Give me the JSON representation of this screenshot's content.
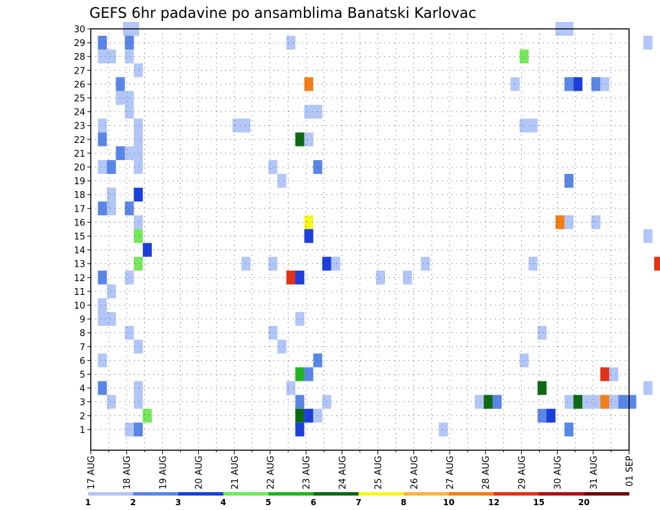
{
  "chart_data": {
    "type": "heatmap",
    "title": "GEFS 6hr padavine po ansamblima Banatski Karlovac",
    "y_ticks": [
      "1",
      "2",
      "3",
      "4",
      "5",
      "6",
      "7",
      "8",
      "9",
      "10",
      "11",
      "12",
      "13",
      "14",
      "15",
      "16",
      "17",
      "18",
      "19",
      "20",
      "21",
      "22",
      "23",
      "24",
      "25",
      "26",
      "27",
      "28",
      "29",
      "30"
    ],
    "x_ticks": [
      "17 AUG",
      "18 AUG",
      "19 AUG",
      "20 AUG",
      "21 AUG",
      "22 AUG",
      "23 AUG",
      "24 AUG",
      "25 AUG",
      "26 AUG",
      "27 AUG",
      "28 AUG",
      "29 AUG",
      "30 AUG",
      "31 AUG",
      "01 SEP"
    ],
    "grid": true,
    "legend": {
      "placement": "bottom",
      "thresholds": [
        "1",
        "2",
        "3",
        "4",
        "5",
        "6",
        "7",
        "8",
        "10",
        "12",
        "15",
        "20"
      ],
      "colors": [
        "#b2c6f7",
        "#5a86e6",
        "#1b3fdc",
        "#74e85a",
        "#22b422",
        "#0b6a12",
        "#f7f71e",
        "#f9b440",
        "#f47f18",
        "#e23218",
        "#b01010",
        "#6e0c0c"
      ]
    },
    "cells": [
      {
        "member": 30,
        "x": 0.9,
        "v": 1
      },
      {
        "member": 30,
        "x": 1.1,
        "v": 1
      },
      {
        "member": 30,
        "x": 12.95,
        "v": 1
      },
      {
        "member": 30,
        "x": 13.2,
        "v": 1
      },
      {
        "member": 29,
        "x": 0.2,
        "v": 2
      },
      {
        "member": 29,
        "x": 0.95,
        "v": 2
      },
      {
        "member": 29,
        "x": 5.45,
        "v": 1
      },
      {
        "member": 29,
        "x": 15.4,
        "v": 1
      },
      {
        "member": 28,
        "x": 0.2,
        "v": 1
      },
      {
        "member": 28,
        "x": 0.45,
        "v": 1
      },
      {
        "member": 28,
        "x": 0.95,
        "v": 1
      },
      {
        "member": 28,
        "x": 11.95,
        "v": 4
      },
      {
        "member": 27,
        "x": 1.2,
        "v": 1
      },
      {
        "member": 26,
        "x": 0.7,
        "v": 2
      },
      {
        "member": 26,
        "x": 5.95,
        "v": 9
      },
      {
        "member": 26,
        "x": 11.7,
        "v": 1
      },
      {
        "member": 26,
        "x": 13.2,
        "v": 2
      },
      {
        "member": 26,
        "x": 13.45,
        "v": 3
      },
      {
        "member": 26,
        "x": 13.95,
        "v": 2
      },
      {
        "member": 26,
        "x": 14.2,
        "v": 1
      },
      {
        "member": 25,
        "x": 0.7,
        "v": 1
      },
      {
        "member": 25,
        "x": 0.95,
        "v": 1
      },
      {
        "member": 24,
        "x": 0.95,
        "v": 1
      },
      {
        "member": 24,
        "x": 5.95,
        "v": 1
      },
      {
        "member": 24,
        "x": 6.2,
        "v": 1
      },
      {
        "member": 23,
        "x": 0.2,
        "v": 1
      },
      {
        "member": 23,
        "x": 1.2,
        "v": 1
      },
      {
        "member": 23,
        "x": 3.95,
        "v": 1
      },
      {
        "member": 23,
        "x": 4.2,
        "v": 1
      },
      {
        "member": 23,
        "x": 11.95,
        "v": 1
      },
      {
        "member": 23,
        "x": 12.2,
        "v": 1
      },
      {
        "member": 22,
        "x": 0.2,
        "v": 2
      },
      {
        "member": 22,
        "x": 1.2,
        "v": 1
      },
      {
        "member": 22,
        "x": 5.7,
        "v": 6
      },
      {
        "member": 22,
        "x": 5.95,
        "v": 1
      },
      {
        "member": 21,
        "x": 0.7,
        "v": 2
      },
      {
        "member": 21,
        "x": 0.95,
        "v": 1
      },
      {
        "member": 21,
        "x": 1.2,
        "v": 1
      },
      {
        "member": 20,
        "x": 0.2,
        "v": 1
      },
      {
        "member": 20,
        "x": 0.45,
        "v": 2
      },
      {
        "member": 20,
        "x": 1.2,
        "v": 1
      },
      {
        "member": 20,
        "x": 4.95,
        "v": 1
      },
      {
        "member": 20,
        "x": 6.2,
        "v": 2
      },
      {
        "member": 19,
        "x": 5.2,
        "v": 1
      },
      {
        "member": 19,
        "x": 13.2,
        "v": 2
      },
      {
        "member": 18,
        "x": 0.45,
        "v": 1
      },
      {
        "member": 18,
        "x": 1.2,
        "v": 3
      },
      {
        "member": 17,
        "x": 0.2,
        "v": 2
      },
      {
        "member": 17,
        "x": 0.45,
        "v": 1
      },
      {
        "member": 17,
        "x": 0.95,
        "v": 2
      },
      {
        "member": 16,
        "x": 1.2,
        "v": 1
      },
      {
        "member": 16,
        "x": 5.95,
        "v": 7
      },
      {
        "member": 16,
        "x": 12.95,
        "v": 9
      },
      {
        "member": 16,
        "x": 13.2,
        "v": 1
      },
      {
        "member": 16,
        "x": 13.95,
        "v": 1
      },
      {
        "member": 15,
        "x": 1.2,
        "v": 4
      },
      {
        "member": 15,
        "x": 5.95,
        "v": 3
      },
      {
        "member": 15,
        "x": 15.4,
        "v": 1
      },
      {
        "member": 14,
        "x": 1.45,
        "v": 3
      },
      {
        "member": 13,
        "x": 1.2,
        "v": 4
      },
      {
        "member": 13,
        "x": 4.2,
        "v": 1
      },
      {
        "member": 13,
        "x": 4.95,
        "v": 1
      },
      {
        "member": 13,
        "x": 6.45,
        "v": 3
      },
      {
        "member": 13,
        "x": 6.7,
        "v": 1
      },
      {
        "member": 13,
        "x": 9.2,
        "v": 1
      },
      {
        "member": 13,
        "x": 12.2,
        "v": 1
      },
      {
        "member": 13,
        "x": 15.7,
        "v": 10
      },
      {
        "member": 12,
        "x": 0.2,
        "v": 2
      },
      {
        "member": 12,
        "x": 0.95,
        "v": 1
      },
      {
        "member": 12,
        "x": 5.45,
        "v": 10
      },
      {
        "member": 12,
        "x": 5.7,
        "v": 3
      },
      {
        "member": 12,
        "x": 7.95,
        "v": 1
      },
      {
        "member": 12,
        "x": 8.7,
        "v": 1
      },
      {
        "member": 11,
        "x": 0.45,
        "v": 1
      },
      {
        "member": 10,
        "x": 0.2,
        "v": 1
      },
      {
        "member": 9,
        "x": 0.2,
        "v": 1
      },
      {
        "member": 9,
        "x": 0.45,
        "v": 1
      },
      {
        "member": 9,
        "x": 5.7,
        "v": 1
      },
      {
        "member": 8,
        "x": 0.95,
        "v": 1
      },
      {
        "member": 8,
        "x": 4.95,
        "v": 1
      },
      {
        "member": 8,
        "x": 12.45,
        "v": 1
      },
      {
        "member": 7,
        "x": 1.2,
        "v": 1
      },
      {
        "member": 7,
        "x": 5.2,
        "v": 1
      },
      {
        "member": 6,
        "x": 0.2,
        "v": 1
      },
      {
        "member": 6,
        "x": 6.2,
        "v": 2
      },
      {
        "member": 6,
        "x": 11.95,
        "v": 1
      },
      {
        "member": 5,
        "x": 5.7,
        "v": 5
      },
      {
        "member": 5,
        "x": 5.95,
        "v": 2
      },
      {
        "member": 5,
        "x": 14.2,
        "v": 10
      },
      {
        "member": 5,
        "x": 14.45,
        "v": 1
      },
      {
        "member": 4,
        "x": 0.2,
        "v": 2
      },
      {
        "member": 4,
        "x": 1.2,
        "v": 1
      },
      {
        "member": 4,
        "x": 5.45,
        "v": 1
      },
      {
        "member": 4,
        "x": 12.45,
        "v": 6
      },
      {
        "member": 4,
        "x": 15.4,
        "v": 1
      },
      {
        "member": 3,
        "x": 0.45,
        "v": 1
      },
      {
        "member": 3,
        "x": 1.2,
        "v": 1
      },
      {
        "member": 3,
        "x": 5.7,
        "v": 2
      },
      {
        "member": 3,
        "x": 6.45,
        "v": 1
      },
      {
        "member": 3,
        "x": 10.7,
        "v": 1
      },
      {
        "member": 3,
        "x": 10.95,
        "v": 6
      },
      {
        "member": 3,
        "x": 11.2,
        "v": 2
      },
      {
        "member": 3,
        "x": 13.2,
        "v": 1
      },
      {
        "member": 3,
        "x": 13.45,
        "v": 6
      },
      {
        "member": 3,
        "x": 13.7,
        "v": 1
      },
      {
        "member": 3,
        "x": 13.95,
        "v": 1
      },
      {
        "member": 3,
        "x": 14.2,
        "v": 9
      },
      {
        "member": 3,
        "x": 14.45,
        "v": 1
      },
      {
        "member": 3,
        "x": 14.7,
        "v": 2
      },
      {
        "member": 3,
        "x": 14.95,
        "v": 2
      },
      {
        "member": 2,
        "x": 1.45,
        "v": 4
      },
      {
        "member": 2,
        "x": 5.7,
        "v": 6
      },
      {
        "member": 2,
        "x": 5.95,
        "v": 3
      },
      {
        "member": 2,
        "x": 6.2,
        "v": 1
      },
      {
        "member": 2,
        "x": 12.45,
        "v": 2
      },
      {
        "member": 2,
        "x": 12.7,
        "v": 3
      },
      {
        "member": 1,
        "x": 0.95,
        "v": 1
      },
      {
        "member": 1,
        "x": 1.2,
        "v": 2
      },
      {
        "member": 1,
        "x": 5.7,
        "v": 3
      },
      {
        "member": 1,
        "x": 9.7,
        "v": 1
      },
      {
        "member": 1,
        "x": 13.2,
        "v": 2
      }
    ]
  }
}
